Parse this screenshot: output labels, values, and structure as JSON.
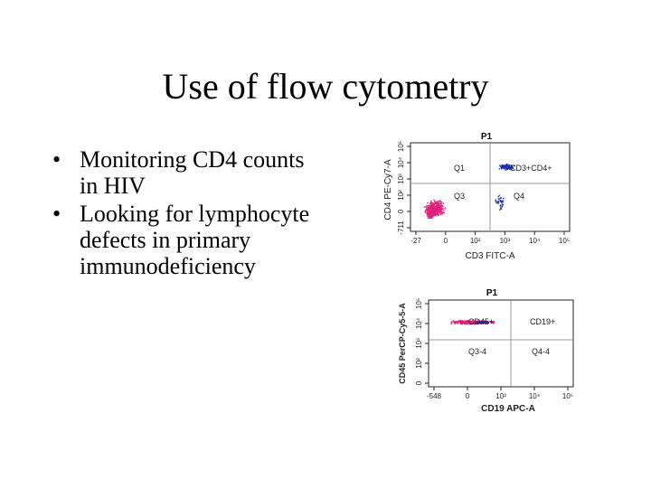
{
  "slide": {
    "title": "Use of flow cytometry",
    "bullets": [
      "Monitoring CD4 counts in HIV",
      "Looking for lymphocyte defects in primary immunodeficiency"
    ],
    "bullet_marks": [
      "•",
      "•"
    ]
  },
  "chart_data": [
    {
      "type": "scatter",
      "title": "P1",
      "xlabel": "CD3 FITC-A",
      "ylabel": "CD4 PE-Cy7-A",
      "x_ticks": [
        "-27",
        "0",
        "10²",
        "10³",
        "10⁴",
        "10⁵"
      ],
      "y_ticks": [
        "-711",
        "0",
        "10²",
        "10³",
        "10⁴",
        "10⁵"
      ],
      "quadrants": [
        "Q1",
        "CD3+CD4+",
        "Q3",
        "Q4"
      ],
      "colors": {
        "population_a": "#e0207a",
        "population_b": "#2030b0"
      }
    },
    {
      "type": "scatter",
      "title": "P1",
      "xlabel": "CD19 APC-A",
      "ylabel": "CD45 PerCP-Cy5-5-A",
      "x_ticks": [
        "-548",
        "0",
        "10³",
        "10⁴",
        "10⁵"
      ],
      "y_ticks": [
        "0",
        "10²",
        "10³",
        "10⁴",
        "10⁵"
      ],
      "quadrants": [
        "CD45+",
        "CD19+",
        "Q3-4",
        "Q4-4"
      ],
      "colors": {
        "population_a": "#e0207a",
        "population_b": "#2030b0"
      }
    }
  ]
}
